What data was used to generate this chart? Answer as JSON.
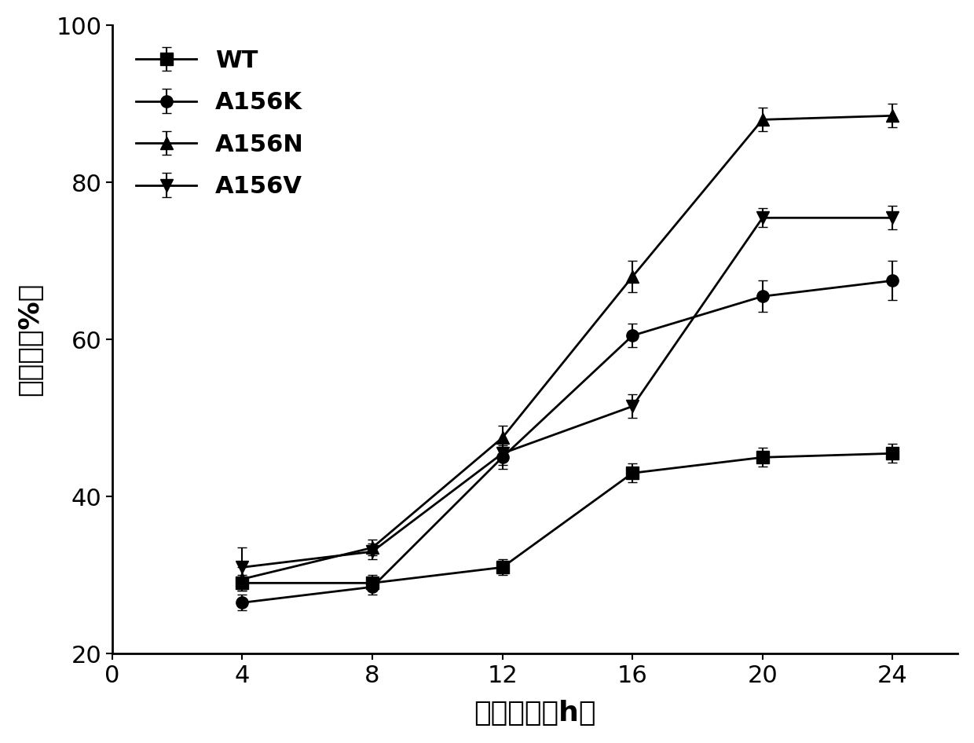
{
  "x": [
    4,
    8,
    12,
    16,
    20,
    24
  ],
  "series": [
    {
      "label": "WT",
      "y": [
        29.0,
        29.0,
        31.0,
        43.0,
        45.0,
        45.5
      ],
      "yerr": [
        1.0,
        1.0,
        1.0,
        1.2,
        1.2,
        1.2
      ],
      "marker": "s",
      "color": "#000000"
    },
    {
      "label": "A156K",
      "y": [
        26.5,
        28.5,
        45.0,
        60.5,
        65.5,
        67.5
      ],
      "yerr": [
        1.0,
        1.0,
        1.5,
        1.5,
        2.0,
        2.5
      ],
      "marker": "o",
      "color": "#000000"
    },
    {
      "label": "A156N",
      "y": [
        29.5,
        33.5,
        47.5,
        68.0,
        88.0,
        88.5
      ],
      "yerr": [
        1.5,
        1.0,
        1.5,
        2.0,
        1.5,
        1.5
      ],
      "marker": "^",
      "color": "#000000"
    },
    {
      "label": "A156V",
      "y": [
        31.0,
        33.0,
        45.5,
        51.5,
        75.5,
        75.5
      ],
      "yerr": [
        2.5,
        1.0,
        1.5,
        1.5,
        1.2,
        1.5
      ],
      "marker": "v",
      "color": "#000000"
    }
  ],
  "xlabel": "反应时间（h）",
  "ylabel": "转化率（%）",
  "xlim": [
    0,
    26
  ],
  "ylim": [
    20,
    100
  ],
  "xticks": [
    0,
    4,
    8,
    12,
    16,
    20,
    24
  ],
  "yticks": [
    20,
    40,
    60,
    80,
    100
  ],
  "background_color": "#ffffff",
  "linewidth": 2.0,
  "markersize": 11,
  "capsize": 4,
  "elinewidth": 1.5,
  "xlabel_fontsize": 26,
  "ylabel_fontsize": 26,
  "tick_fontsize": 22,
  "legend_fontsize": 22
}
